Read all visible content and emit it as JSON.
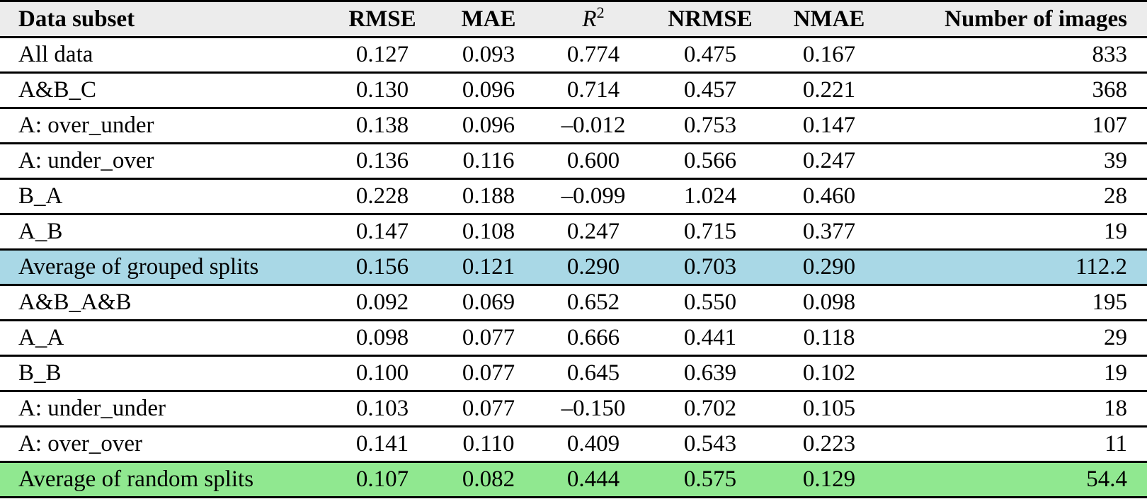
{
  "table": {
    "header": [
      "Data subset",
      "RMSE",
      "MAE",
      {
        "base": "R",
        "sup": "2"
      },
      "NRMSE",
      "NMAE",
      "Number of images"
    ],
    "rows": [
      {
        "cells": [
          "All data",
          "0.127",
          "0.093",
          "0.774",
          "0.475",
          "0.167",
          "833"
        ]
      },
      {
        "cells": [
          "A&B_C",
          "0.130",
          "0.096",
          "0.714",
          "0.457",
          "0.221",
          "368"
        ]
      },
      {
        "cells": [
          "A: over_under",
          "0.138",
          "0.096",
          "–0.012",
          "0.753",
          "0.147",
          "107"
        ]
      },
      {
        "cells": [
          "A: under_over",
          "0.136",
          "0.116",
          "0.600",
          "0.566",
          "0.247",
          "39"
        ]
      },
      {
        "cells": [
          "B_A",
          "0.228",
          "0.188",
          "–0.099",
          "1.024",
          "0.460",
          "28"
        ]
      },
      {
        "cells": [
          "A_B",
          "0.147",
          "0.108",
          "0.247",
          "0.715",
          "0.377",
          "19"
        ]
      },
      {
        "cells": [
          "Average of grouped splits",
          "0.156",
          "0.121",
          "0.290",
          "0.703",
          "0.290",
          "112.2"
        ],
        "background": "#a9d8e6"
      },
      {
        "cells": [
          "A&B_A&B",
          "0.092",
          "0.069",
          "0.652",
          "0.550",
          "0.098",
          "195"
        ]
      },
      {
        "cells": [
          "A_A",
          "0.098",
          "0.077",
          "0.666",
          "0.441",
          "0.118",
          "29"
        ]
      },
      {
        "cells": [
          "B_B",
          "0.100",
          "0.077",
          "0.645",
          "0.639",
          "0.102",
          "19"
        ]
      },
      {
        "cells": [
          "A: under_under",
          "0.103",
          "0.077",
          "–0.150",
          "0.702",
          "0.105",
          "18"
        ]
      },
      {
        "cells": [
          "A: over_over",
          "0.141",
          "0.110",
          "0.409",
          "0.543",
          "0.223",
          "11"
        ]
      },
      {
        "cells": [
          "Average of random splits",
          "0.107",
          "0.082",
          "0.444",
          "0.575",
          "0.129",
          "54.4"
        ],
        "background": "#90e890"
      }
    ]
  }
}
